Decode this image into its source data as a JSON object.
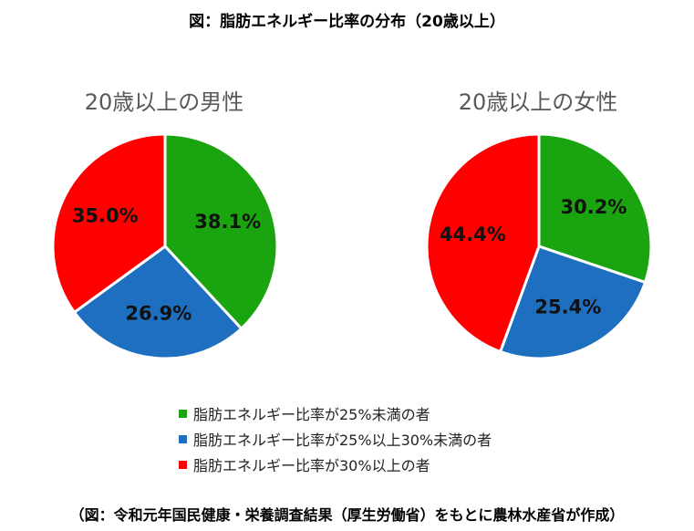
{
  "title": "図：脂肪エネルギー比率の分布（20歳以上）",
  "source": "（図：令和元年国民健康・栄養調査結果（厚生労働省）をもとに農林水産省が作成）",
  "legend": [
    {
      "label": "脂肪エネルギー比率が25%未満の者",
      "color": "#1aa510"
    },
    {
      "label": "脂肪エネルギー比率が25%以上30%未満の者",
      "color": "#1f6fc1"
    },
    {
      "label": "脂肪エネルギー比率が30%以上の者",
      "color": "#ff0000"
    }
  ],
  "chart_data": [
    {
      "type": "pie",
      "title": "20歳以上の男性",
      "categories": [
        "脂肪エネルギー比率が25%未満の者",
        "脂肪エネルギー比率が25%以上30%未満の者",
        "脂肪エネルギー比率が30%以上の者"
      ],
      "values": [
        38.1,
        26.9,
        35.0
      ],
      "labels": [
        "38.1%",
        "26.9%",
        "35.0%"
      ],
      "colors": [
        "#1aa510",
        "#1f6fc1",
        "#ff0000"
      ],
      "legend_position": "bottom"
    },
    {
      "type": "pie",
      "title": "20歳以上の女性",
      "categories": [
        "脂肪エネルギー比率が25%未満の者",
        "脂肪エネルギー比率が25%以上30%未満の者",
        "脂肪エネルギー比率が30%以上の者"
      ],
      "values": [
        30.2,
        25.4,
        44.4
      ],
      "labels": [
        "30.2%",
        "25.4%",
        "44.4%"
      ],
      "colors": [
        "#1aa510",
        "#1f6fc1",
        "#ff0000"
      ],
      "legend_position": "bottom"
    }
  ]
}
